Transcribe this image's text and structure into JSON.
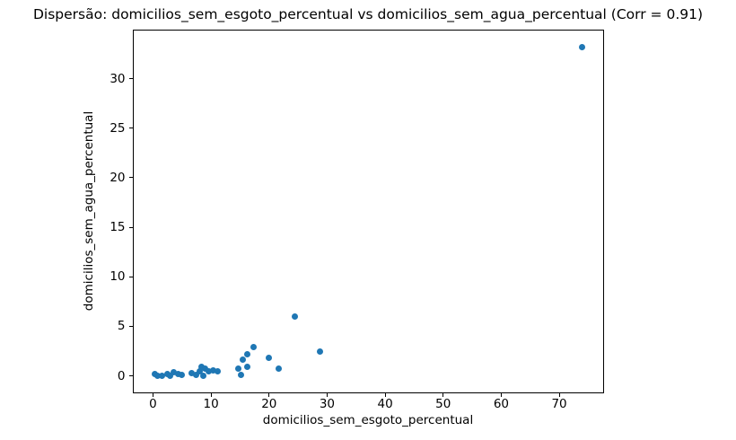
{
  "chart_data": {
    "type": "scatter",
    "title": "Dispersão: domicilios_sem_esgoto_percentual vs domicilios_sem_agua_percentual (Corr = 0.91)",
    "xlabel": "domicilios_sem_esgoto_percentual",
    "ylabel": "domicilios_sem_agua_percentual",
    "correlation": 0.91,
    "xlim": [
      -3.4,
      77.8
    ],
    "ylim": [
      -1.8,
      34.9
    ],
    "xticks": [
      0,
      10,
      20,
      30,
      40,
      50,
      60,
      70
    ],
    "yticks": [
      0,
      5,
      10,
      15,
      20,
      25,
      30
    ],
    "grid": false,
    "legend": "none",
    "marker_color": "#1f77b4",
    "spine_color": "#000000",
    "background_color": "#ffffff",
    "points": [
      [
        0.3,
        0.2
      ],
      [
        0.7,
        0.05
      ],
      [
        1.6,
        0.05
      ],
      [
        2.4,
        0.2
      ],
      [
        2.9,
        0.05
      ],
      [
        3.6,
        0.35
      ],
      [
        4.3,
        0.2
      ],
      [
        4.9,
        0.1
      ],
      [
        6.6,
        0.3
      ],
      [
        7.4,
        0.1
      ],
      [
        8.0,
        0.5
      ],
      [
        8.3,
        0.9
      ],
      [
        8.6,
        0.0
      ],
      [
        8.9,
        0.7
      ],
      [
        9.6,
        0.45
      ],
      [
        10.4,
        0.6
      ],
      [
        11.1,
        0.5
      ],
      [
        14.7,
        0.7
      ],
      [
        15.2,
        0.1
      ],
      [
        15.4,
        1.6
      ],
      [
        16.3,
        0.9
      ],
      [
        16.3,
        2.2
      ],
      [
        17.3,
        2.9
      ],
      [
        19.9,
        1.8
      ],
      [
        21.7,
        0.7
      ],
      [
        24.4,
        6.0
      ],
      [
        28.7,
        2.5
      ],
      [
        74.0,
        33.2
      ]
    ]
  }
}
